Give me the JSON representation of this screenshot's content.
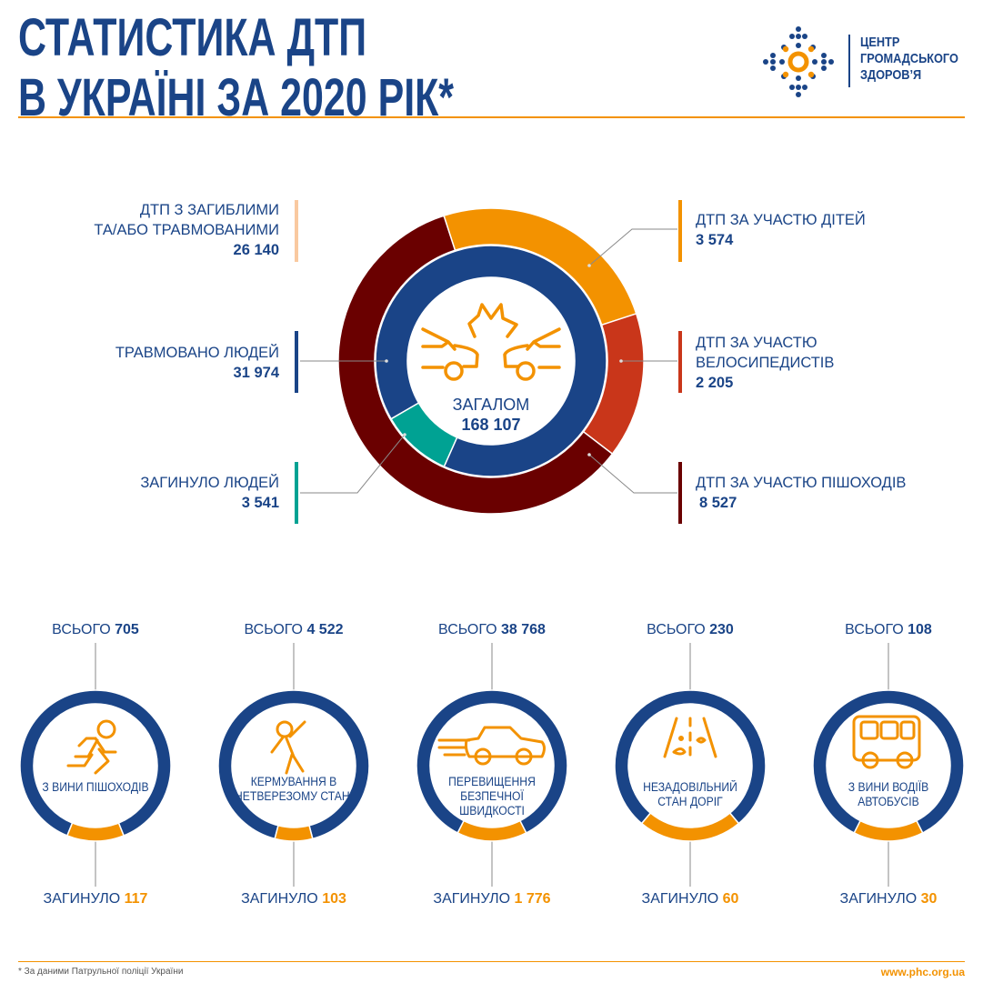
{
  "header": {
    "title_line1": "СТАТИСТИКА ДТП",
    "title_line2": "В УКРАЇНІ ЗА 2020 РІК*",
    "logo_line1": "ЦЕНТР",
    "logo_line2": "ГРОМАДСЬКОГО",
    "logo_line3": "ЗДОРОВ’Я"
  },
  "colors": {
    "blue": "#1a4487",
    "orange": "#f39200",
    "dark_red": "#6a0000",
    "red": "#c9361a",
    "teal": "#00a293",
    "peach": "#f9c9a0"
  },
  "chart_data": {
    "type": "donut",
    "center": {
      "label": "ЗАГАЛОМ",
      "value": "168 107"
    },
    "summary": {
      "label_line1": "ДТП З ЗАГИБЛИМИ",
      "label_line2": "ТА/АБО ТРАВМОВАНИМИ",
      "value": "26 140",
      "color": "#f9c9a0"
    },
    "outer_ring": [
      {
        "label_line1": "ДТП ЗА УЧАСТЮ ДІТЕЙ",
        "label_line2": "",
        "value": 3574,
        "value_text": "3 574",
        "color": "#f39200"
      },
      {
        "label_line1": "ДТП ЗА УЧАСТЮ",
        "label_line2": "ВЕЛОСИПЕДИСТІВ",
        "value": 2205,
        "value_text": "2 205",
        "color": "#c9361a"
      },
      {
        "label_line1": "ДТП ЗА УЧАСТЮ ПІШОХОДІВ",
        "label_line2": "",
        "value": 8527,
        "value_text": "8 527",
        "color": "#6a0000"
      }
    ],
    "inner_ring": [
      {
        "label": "ТРАВМОВАНО ЛЮДЕЙ",
        "value": 31974,
        "value_text": "31 974",
        "color": "#1a4487"
      },
      {
        "label": "ЗАГИНУЛО ЛЮДЕЙ",
        "value": 3541,
        "value_text": "3 541",
        "color": "#00a293"
      }
    ],
    "causes": [
      {
        "caption": "З ВИНИ ПІШОХОДІВ",
        "icon": "running-pedestrian-icon",
        "total_label": "ВСЬОГО",
        "total": "705",
        "killed_label": "ЗАГИНУЛО",
        "killed": "117"
      },
      {
        "caption": "КЕРМУВАННЯ В НЕТВЕРЕЗОМУ СТАНІ",
        "icon": "drunk-person-icon",
        "total_label": "ВСЬОГО",
        "total": "4 522",
        "killed_label": "ЗАГИНУЛО",
        "killed": "103"
      },
      {
        "caption": "ПЕРЕВИЩЕННЯ БЕЗПЕЧНОЇ ШВИДКОСТІ",
        "icon": "speeding-car-icon",
        "total_label": "ВСЬОГО",
        "total": "38 768",
        "killed_label": "ЗАГИНУЛО",
        "killed": "1 776"
      },
      {
        "caption": "НЕЗАДОВІЛЬНИЙ СТАН ДОРІГ",
        "icon": "damaged-road-icon",
        "total_label": "ВСЬОГО",
        "total": "230",
        "killed_label": "ЗАГИНУЛО",
        "killed": "60"
      },
      {
        "caption": "З ВИНИ ВОДІЇВ АВТОБУСІВ",
        "icon": "bus-icon",
        "total_label": "ВСЬОГО",
        "total": "108",
        "killed_label": "ЗАГИНУЛО",
        "killed": "30"
      }
    ]
  },
  "footer": {
    "note": "* За даними Патрульної поліції України",
    "url": "www.phc.org.ua"
  }
}
